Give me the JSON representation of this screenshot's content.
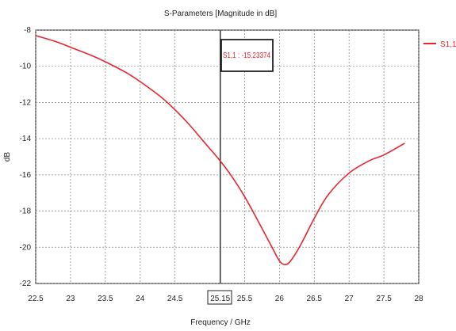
{
  "chart_data": {
    "type": "line",
    "title": "S-Parameters [Magnitude in dB]",
    "xlabel": "Frequency / GHz",
    "ylabel": "dB",
    "xlim": [
      22.5,
      28
    ],
    "ylim": [
      -22,
      -8
    ],
    "x_ticks": [
      22.5,
      23,
      23.5,
      24,
      24.5,
      25.15,
      25.5,
      26,
      26.5,
      27,
      27.5,
      28
    ],
    "x_tick_labels": [
      "22.5",
      "23",
      "23.5",
      "24",
      "24.5",
      "25.15",
      "25.5",
      "26",
      "26.5",
      "27",
      "27.5",
      "28"
    ],
    "y_ticks": [
      -8,
      -10,
      -12,
      -14,
      -16,
      -18,
      -20,
      -22
    ],
    "y_tick_labels": [
      "-8",
      "-10",
      "-12",
      "-14",
      "-16",
      "-18",
      "-20",
      "-22"
    ],
    "grid": true,
    "legend_position": "right",
    "series": [
      {
        "name": "S1,1",
        "color": "#e8242c",
        "x": [
          22.5,
          22.8,
          23.0,
          23.3,
          23.5,
          23.8,
          24.0,
          24.3,
          24.5,
          24.7,
          24.9,
          25.0,
          25.15,
          25.3,
          25.5,
          25.7,
          25.9,
          26.0,
          26.07,
          26.15,
          26.3,
          26.5,
          26.7,
          27.0,
          27.3,
          27.5,
          27.8
        ],
        "values": [
          -8.3,
          -8.65,
          -8.95,
          -9.4,
          -9.75,
          -10.35,
          -10.85,
          -11.7,
          -12.4,
          -13.2,
          -14.1,
          -14.55,
          -15.23,
          -16.0,
          -17.2,
          -18.6,
          -20.05,
          -20.75,
          -20.95,
          -20.8,
          -19.9,
          -18.4,
          -17.1,
          -15.9,
          -15.2,
          -14.9,
          -14.25
        ]
      }
    ],
    "marker": {
      "x": 25.15,
      "label": "S1,1 : -15.23374"
    }
  }
}
